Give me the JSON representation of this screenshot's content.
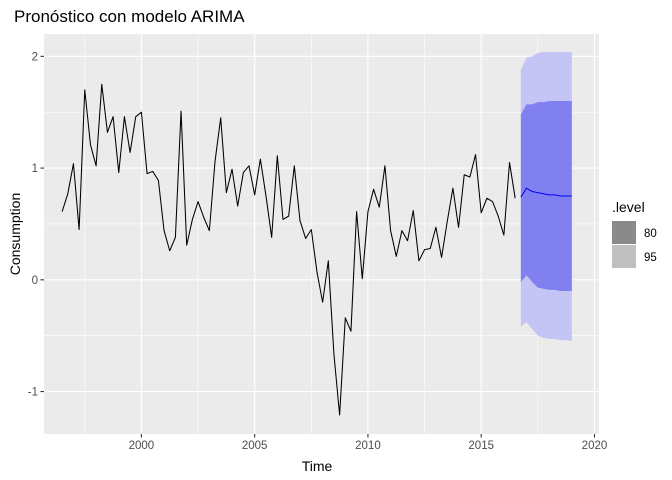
{
  "chart_data": {
    "type": "line",
    "title": "Pronóstico con modelo ARIMA",
    "xlabel": "Time",
    "ylabel": "Consumption",
    "xlim": [
      1995.7,
      2020.2
    ],
    "ylim": [
      -1.38,
      2.2
    ],
    "x_ticks": [
      2000,
      2005,
      2010,
      2015,
      2020
    ],
    "x_tick_labels": [
      "2000",
      "2005",
      "2010",
      "2015",
      "2020"
    ],
    "y_ticks": [
      -1,
      0,
      1,
      2
    ],
    "y_tick_labels": [
      "-1",
      "0",
      "1",
      "2"
    ],
    "grid": true,
    "series": [
      {
        "values": [
          [
            1996.5,
            0.61
          ],
          [
            1996.75,
            0.77
          ],
          [
            1997.0,
            1.04
          ],
          [
            1997.25,
            0.45
          ],
          [
            1997.5,
            1.7
          ],
          [
            1997.75,
            1.21
          ],
          [
            1998.0,
            1.02
          ],
          [
            1998.25,
            1.75
          ],
          [
            1998.5,
            1.32
          ],
          [
            1998.75,
            1.46
          ],
          [
            1999.0,
            0.96
          ],
          [
            1999.25,
            1.46
          ],
          [
            1999.5,
            1.14
          ],
          [
            1999.75,
            1.46
          ],
          [
            2000.0,
            1.5
          ],
          [
            2000.25,
            0.95
          ],
          [
            2000.5,
            0.97
          ],
          [
            2000.75,
            0.89
          ],
          [
            2001.0,
            0.44
          ],
          [
            2001.25,
            0.26
          ],
          [
            2001.5,
            0.38
          ],
          [
            2001.75,
            1.51
          ],
          [
            2002.0,
            0.31
          ],
          [
            2002.25,
            0.54
          ],
          [
            2002.5,
            0.7
          ],
          [
            2002.75,
            0.56
          ],
          [
            2003.0,
            0.44
          ],
          [
            2003.25,
            1.06
          ],
          [
            2003.5,
            1.45
          ],
          [
            2003.75,
            0.78
          ],
          [
            2004.0,
            0.99
          ],
          [
            2004.25,
            0.66
          ],
          [
            2004.5,
            0.96
          ],
          [
            2004.75,
            1.02
          ],
          [
            2005.0,
            0.76
          ],
          [
            2005.25,
            1.08
          ],
          [
            2005.5,
            0.75
          ],
          [
            2005.75,
            0.38
          ],
          [
            2006.0,
            1.11
          ],
          [
            2006.25,
            0.54
          ],
          [
            2006.5,
            0.57
          ],
          [
            2006.75,
            1.02
          ],
          [
            2007.0,
            0.53
          ],
          [
            2007.25,
            0.37
          ],
          [
            2007.5,
            0.45
          ],
          [
            2007.75,
            0.07
          ],
          [
            2008.0,
            -0.2
          ],
          [
            2008.25,
            0.17
          ],
          [
            2008.5,
            -0.67
          ],
          [
            2008.75,
            -1.21
          ],
          [
            2009.0,
            -0.34
          ],
          [
            2009.25,
            -0.46
          ],
          [
            2009.5,
            0.61
          ],
          [
            2009.75,
            0.01
          ],
          [
            2010.0,
            0.61
          ],
          [
            2010.25,
            0.81
          ],
          [
            2010.5,
            0.65
          ],
          [
            2010.75,
            1.02
          ],
          [
            2011.0,
            0.44
          ],
          [
            2011.25,
            0.21
          ],
          [
            2011.5,
            0.44
          ],
          [
            2011.75,
            0.35
          ],
          [
            2012.0,
            0.62
          ],
          [
            2012.25,
            0.17
          ],
          [
            2012.5,
            0.27
          ],
          [
            2012.75,
            0.28
          ],
          [
            2013.0,
            0.47
          ],
          [
            2013.25,
            0.2
          ],
          [
            2013.5,
            0.52
          ],
          [
            2013.75,
            0.82
          ],
          [
            2014.0,
            0.47
          ],
          [
            2014.25,
            0.94
          ],
          [
            2014.5,
            0.92
          ],
          [
            2014.75,
            1.12
          ],
          [
            2015.0,
            0.6
          ],
          [
            2015.25,
            0.73
          ],
          [
            2015.5,
            0.7
          ],
          [
            2015.75,
            0.57
          ],
          [
            2016.0,
            0.4
          ],
          [
            2016.25,
            1.05
          ],
          [
            2016.5,
            0.73
          ]
        ],
        "color": "#000000"
      },
      {
        "values": [
          [
            2016.75,
            0.74
          ],
          [
            2017.0,
            0.82
          ],
          [
            2017.25,
            0.79
          ],
          [
            2017.5,
            0.78
          ],
          [
            2017.75,
            0.77
          ],
          [
            2018.0,
            0.76
          ],
          [
            2018.25,
            0.76
          ],
          [
            2018.5,
            0.75
          ],
          [
            2018.75,
            0.75
          ],
          [
            2019.0,
            0.75
          ]
        ],
        "color": "#0000ff"
      }
    ],
    "intervals": {
      "x": [
        2016.75,
        2017.0,
        2017.25,
        2017.5,
        2017.75,
        2018.0,
        2018.25,
        2018.5,
        2018.75,
        2019.0
      ],
      "lo80": [
        -0.02,
        0.04,
        -0.02,
        -0.07,
        -0.08,
        -0.09,
        -0.09,
        -0.1,
        -0.1,
        -0.1
      ],
      "hi80": [
        1.48,
        1.57,
        1.57,
        1.59,
        1.59,
        1.6,
        1.6,
        1.6,
        1.6,
        1.6
      ],
      "lo95": [
        -0.42,
        -0.38,
        -0.44,
        -0.5,
        -0.52,
        -0.53,
        -0.53,
        -0.54,
        -0.54,
        -0.55
      ],
      "hi95": [
        1.88,
        1.99,
        2.0,
        2.03,
        2.04,
        2.04,
        2.04,
        2.04,
        2.04,
        2.04
      ]
    },
    "colors": {
      "panel_bg": "#ebebeb",
      "grid_major": "#ffffff",
      "band80": "#8080f0",
      "band95": "#c5c5f5",
      "legend80": "#8a8a8a",
      "legend95": "#bfbfbf"
    },
    "legend": {
      "title": ".level",
      "entries": [
        "80",
        "95"
      ],
      "placement": "right"
    }
  }
}
